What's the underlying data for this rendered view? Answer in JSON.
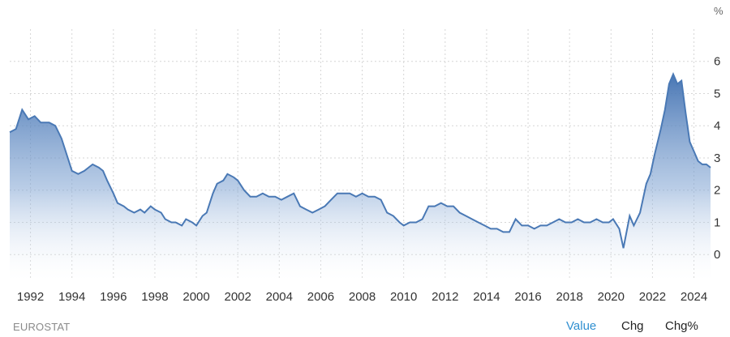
{
  "unit_label": "%",
  "source": "EUROSTAT",
  "tabs": {
    "value": "Value",
    "chg": "Chg",
    "chgpct": "Chg%"
  },
  "colors": {
    "line": "#4a79b5",
    "fill_top": "#3f6fb0",
    "fill_bottom": "#ffffff",
    "grid": "#d6d6d6",
    "tab_active": "#2f8fd0"
  },
  "chart_data": {
    "type": "area",
    "x_tick_labels": [
      "1992",
      "1994",
      "1996",
      "1998",
      "2000",
      "2002",
      "2004",
      "2006",
      "2008",
      "2010",
      "2012",
      "2014",
      "2016",
      "2018",
      "2020",
      "2022",
      "2024"
    ],
    "y_tick_labels": [
      "0",
      "1",
      "2",
      "3",
      "4",
      "5",
      "6"
    ],
    "xlim": [
      1991.0,
      2024.8
    ],
    "ylim": [
      -0.8,
      7.0
    ],
    "grid": true,
    "series": [
      {
        "x": [
          1991.0,
          1991.3,
          1991.6,
          1991.9,
          1992.2,
          1992.5,
          1992.7,
          1992.9,
          1993.2,
          1993.5,
          1993.8,
          1994.0,
          1994.3,
          1994.6,
          1994.8,
          1995.0,
          1995.3,
          1995.5,
          1995.7,
          1996.0,
          1996.2,
          1996.5,
          1996.7,
          1997.0,
          1997.3,
          1997.5,
          1997.8,
          1998.0,
          1998.3,
          1998.5,
          1998.8,
          1999.0,
          1999.3,
          1999.5,
          1999.8,
          2000.0,
          2000.3,
          2000.5,
          2000.8,
          2001.0,
          2001.3,
          2001.5,
          2001.8,
          2002.0,
          2002.3,
          2002.6,
          2002.9,
          2003.2,
          2003.5,
          2003.8,
          2004.1,
          2004.4,
          2004.7,
          2005.0,
          2005.3,
          2005.6,
          2005.9,
          2006.2,
          2006.5,
          2006.8,
          2007.1,
          2007.4,
          2007.7,
          2008.0,
          2008.3,
          2008.6,
          2008.9,
          2009.2,
          2009.5,
          2009.8,
          2010.0,
          2010.3,
          2010.6,
          2010.9,
          2011.2,
          2011.5,
          2011.8,
          2012.1,
          2012.4,
          2012.7,
          2013.0,
          2013.3,
          2013.6,
          2013.9,
          2014.2,
          2014.5,
          2014.8,
          2015.1,
          2015.4,
          2015.7,
          2016.0,
          2016.3,
          2016.6,
          2016.9,
          2017.2,
          2017.5,
          2017.8,
          2018.1,
          2018.4,
          2018.7,
          2019.0,
          2019.3,
          2019.6,
          2019.9,
          2020.1,
          2020.4,
          2020.6,
          2020.9,
          2021.1,
          2021.4,
          2021.7,
          2021.9,
          2022.1,
          2022.4,
          2022.6,
          2022.8,
          2023.0,
          2023.2,
          2023.4,
          2023.6,
          2023.8,
          2024.0,
          2024.2,
          2024.4,
          2024.6,
          2024.8
        ],
        "values": [
          3.8,
          3.9,
          4.5,
          4.2,
          4.3,
          4.1,
          4.1,
          4.1,
          4.0,
          3.6,
          3.0,
          2.6,
          2.5,
          2.6,
          2.7,
          2.8,
          2.7,
          2.6,
          2.3,
          1.9,
          1.6,
          1.5,
          1.4,
          1.3,
          1.4,
          1.3,
          1.5,
          1.4,
          1.3,
          1.1,
          1.0,
          1.0,
          0.9,
          1.1,
          1.0,
          0.9,
          1.2,
          1.3,
          1.9,
          2.2,
          2.3,
          2.5,
          2.4,
          2.3,
          2.0,
          1.8,
          1.8,
          1.9,
          1.8,
          1.8,
          1.7,
          1.8,
          1.9,
          1.5,
          1.4,
          1.3,
          1.4,
          1.5,
          1.7,
          1.9,
          1.9,
          1.9,
          1.8,
          1.9,
          1.8,
          1.8,
          1.7,
          1.3,
          1.2,
          1.0,
          0.9,
          1.0,
          1.0,
          1.1,
          1.5,
          1.5,
          1.6,
          1.5,
          1.5,
          1.3,
          1.2,
          1.1,
          1.0,
          0.9,
          0.8,
          0.8,
          0.7,
          0.7,
          1.1,
          0.9,
          0.9,
          0.8,
          0.9,
          0.9,
          1.0,
          1.1,
          1.0,
          1.0,
          1.1,
          1.0,
          1.0,
          1.1,
          1.0,
          1.0,
          1.1,
          0.8,
          0.2,
          1.2,
          0.9,
          1.3,
          2.2,
          2.5,
          3.1,
          3.9,
          4.5,
          5.3,
          5.6,
          5.3,
          5.4,
          4.4,
          3.5,
          3.2,
          2.9,
          2.8,
          2.8,
          2.7
        ]
      }
    ]
  }
}
